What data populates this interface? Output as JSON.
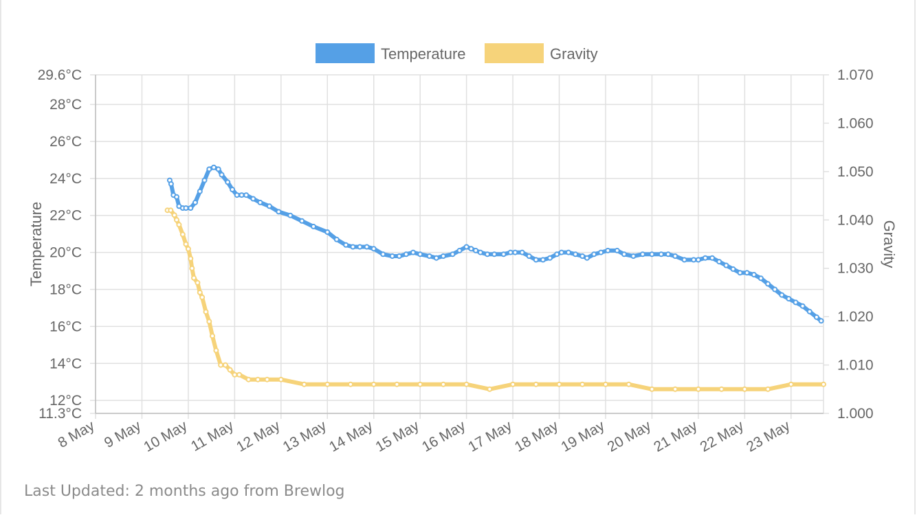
{
  "footer": {
    "last_updated": "Last Updated: 2 months ago from Brewlog"
  },
  "colors": {
    "temperature": "#55a0e6",
    "gravity": "#f6d37a",
    "grid": "#e0e0e0",
    "text": "#666666"
  },
  "chart_data": {
    "type": "line",
    "title": "",
    "legend": {
      "position": "top",
      "entries": [
        "Temperature",
        "Gravity"
      ]
    },
    "grid": true,
    "x_axis": {
      "type": "date",
      "range": [
        8,
        23.7
      ],
      "tick_values": [
        8,
        9,
        10,
        11,
        12,
        13,
        14,
        15,
        16,
        17,
        18,
        19,
        20,
        21,
        22,
        23
      ],
      "tick_labels": [
        "8 May",
        "9 May",
        "10 May",
        "11 May",
        "12 May",
        "13 May",
        "14 May",
        "15 May",
        "16 May",
        "17 May",
        "18 May",
        "19 May",
        "20 May",
        "21 May",
        "22 May",
        "23 May"
      ]
    },
    "y_left": {
      "label": "Temperature",
      "unit": "°C",
      "range": [
        11.3,
        29.6
      ],
      "tick_values": [
        11.3,
        12,
        14,
        16,
        18,
        20,
        22,
        24,
        26,
        28,
        29.6
      ],
      "tick_labels": [
        "11.3°C",
        "12°C",
        "14°C",
        "16°C",
        "18°C",
        "20°C",
        "22°C",
        "24°C",
        "26°C",
        "28°C",
        "29.6°C"
      ]
    },
    "y_right": {
      "label": "Gravity",
      "range": [
        1.0,
        1.07
      ],
      "tick_values": [
        1.0,
        1.01,
        1.02,
        1.03,
        1.04,
        1.05,
        1.06,
        1.07
      ],
      "tick_labels": [
        "1.000",
        "1.010",
        "1.020",
        "1.030",
        "1.040",
        "1.050",
        "1.060",
        "1.070"
      ]
    },
    "series": [
      {
        "name": "Temperature",
        "axis": "left",
        "x": [
          9.6,
          9.63,
          9.68,
          9.75,
          9.8,
          9.88,
          9.95,
          10.05,
          10.15,
          10.25,
          10.35,
          10.45,
          10.55,
          10.65,
          10.72,
          10.85,
          10.95,
          11.05,
          11.15,
          11.25,
          11.4,
          11.55,
          11.75,
          11.95,
          12.2,
          12.45,
          12.7,
          13.0,
          13.2,
          13.4,
          13.55,
          13.7,
          13.85,
          14.0,
          14.2,
          14.4,
          14.55,
          14.7,
          14.85,
          15.0,
          15.2,
          15.35,
          15.5,
          15.7,
          15.85,
          16.0,
          16.1,
          16.2,
          16.3,
          16.45,
          16.6,
          16.8,
          16.95,
          17.05,
          17.2,
          17.35,
          17.5,
          17.65,
          17.8,
          17.95,
          18.05,
          18.2,
          18.35,
          18.5,
          18.6,
          18.75,
          18.9,
          19.05,
          19.25,
          19.4,
          19.6,
          19.8,
          20.0,
          20.2,
          20.35,
          20.5,
          20.7,
          20.9,
          21.0,
          21.15,
          21.3,
          21.45,
          21.6,
          21.75,
          21.9,
          22.05,
          22.2,
          22.35,
          22.5,
          22.65,
          22.8,
          22.95,
          23.1,
          23.25,
          23.4,
          23.55,
          23.65
        ],
        "values": [
          23.9,
          23.7,
          23.1,
          23.0,
          22.5,
          22.4,
          22.4,
          22.4,
          22.7,
          23.3,
          23.9,
          24.5,
          24.6,
          24.5,
          24.2,
          23.8,
          23.4,
          23.1,
          23.1,
          23.1,
          22.9,
          22.7,
          22.5,
          22.2,
          22.0,
          21.7,
          21.4,
          21.1,
          20.7,
          20.4,
          20.3,
          20.3,
          20.3,
          20.2,
          19.9,
          19.8,
          19.8,
          19.9,
          20.0,
          19.9,
          19.8,
          19.7,
          19.8,
          19.9,
          20.1,
          20.3,
          20.2,
          20.1,
          20.0,
          19.9,
          19.9,
          19.9,
          20.0,
          20.0,
          20.0,
          19.8,
          19.6,
          19.6,
          19.7,
          19.9,
          20.0,
          20.0,
          19.9,
          19.8,
          19.7,
          19.9,
          20.0,
          20.1,
          20.1,
          19.9,
          19.8,
          19.9,
          19.9,
          19.9,
          19.9,
          19.8,
          19.6,
          19.6,
          19.6,
          19.7,
          19.7,
          19.5,
          19.3,
          19.1,
          18.9,
          18.9,
          18.8,
          18.6,
          18.3,
          18.0,
          17.7,
          17.5,
          17.3,
          17.1,
          16.8,
          16.5,
          16.3
        ]
      },
      {
        "name": "Gravity",
        "axis": "right",
        "x": [
          9.55,
          9.62,
          9.7,
          9.75,
          9.8,
          9.88,
          9.95,
          10.0,
          10.05,
          10.08,
          10.12,
          10.2,
          10.25,
          10.3,
          10.38,
          10.45,
          10.52,
          10.6,
          10.7,
          10.8,
          10.9,
          11.0,
          11.1,
          11.3,
          11.5,
          11.7,
          12.0,
          12.5,
          13.0,
          13.5,
          14.0,
          14.5,
          15.0,
          15.5,
          16.0,
          16.5,
          17.0,
          17.5,
          18.0,
          18.5,
          19.0,
          19.5,
          20.0,
          20.5,
          21.0,
          21.5,
          22.0,
          22.5,
          23.0,
          23.7
        ],
        "values": [
          1.042,
          1.042,
          1.041,
          1.04,
          1.039,
          1.037,
          1.035,
          1.034,
          1.032,
          1.03,
          1.028,
          1.027,
          1.025,
          1.024,
          1.021,
          1.019,
          1.016,
          1.013,
          1.01,
          1.01,
          1.009,
          1.008,
          1.008,
          1.007,
          1.007,
          1.007,
          1.007,
          1.006,
          1.006,
          1.006,
          1.006,
          1.006,
          1.006,
          1.006,
          1.006,
          1.005,
          1.006,
          1.006,
          1.006,
          1.006,
          1.006,
          1.006,
          1.005,
          1.005,
          1.005,
          1.005,
          1.005,
          1.005,
          1.006,
          1.006
        ]
      }
    ]
  }
}
